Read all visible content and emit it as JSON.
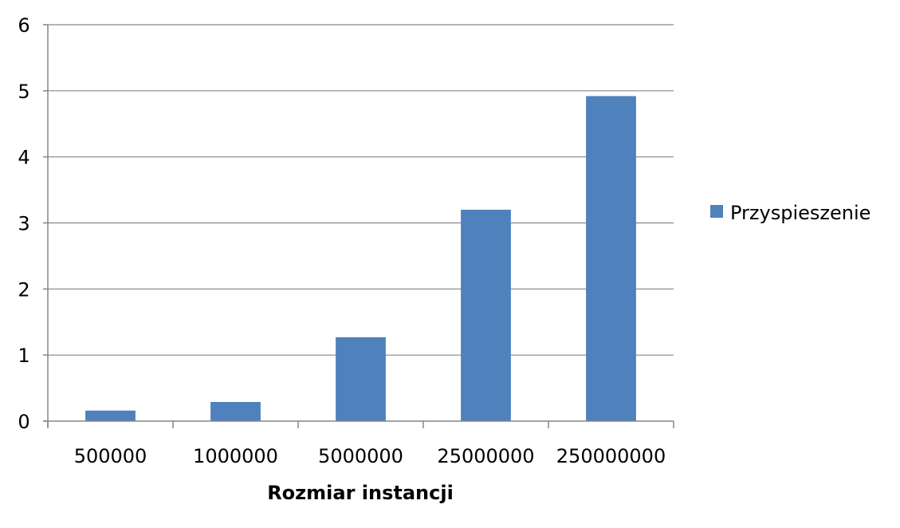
{
  "chart_data": {
    "type": "bar",
    "categories": [
      "500000",
      "1000000",
      "5000000",
      "25000000",
      "250000000"
    ],
    "series": [
      {
        "name": "Przyspieszenie",
        "color": "#4F81BD",
        "values": [
          0.16,
          0.29,
          1.27,
          3.2,
          4.92
        ]
      }
    ],
    "title": "",
    "xlabel": "Rozmiar instancji",
    "ylabel": "",
    "ylim": [
      0,
      6
    ],
    "yticks": [
      "0",
      "1",
      "2",
      "3",
      "4",
      "5",
      "6"
    ],
    "grid": true,
    "legend_position": "right",
    "gridline_color": "#868686",
    "axis_color": "#868686"
  }
}
